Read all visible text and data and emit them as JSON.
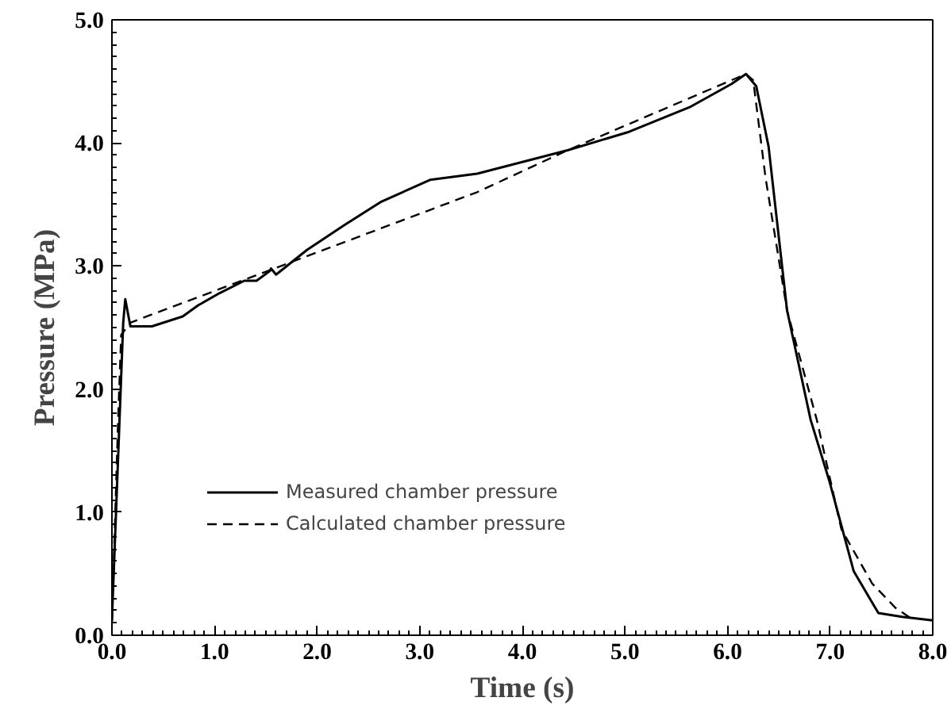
{
  "chart_data": {
    "type": "line",
    "xlabel": "Time (s)",
    "ylabel": "Pressure (MPa)",
    "xlim": [
      0,
      8
    ],
    "ylim": [
      0,
      5
    ],
    "xticks": [
      {
        "value": 0,
        "label": "0.0"
      },
      {
        "value": 1,
        "label": "1.0"
      },
      {
        "value": 2,
        "label": "2.0"
      },
      {
        "value": 3,
        "label": "3.0"
      },
      {
        "value": 4,
        "label": "4.0"
      },
      {
        "value": 5,
        "label": "5.0"
      },
      {
        "value": 6,
        "label": "6.0"
      },
      {
        "value": 7,
        "label": "7.0"
      },
      {
        "value": 8,
        "label": "8.0"
      }
    ],
    "yticks": [
      {
        "value": 0,
        "label": "0.0"
      },
      {
        "value": 1,
        "label": "1.0"
      },
      {
        "value": 2,
        "label": "2.0"
      },
      {
        "value": 3,
        "label": "3.0"
      },
      {
        "value": 4,
        "label": "4.0"
      },
      {
        "value": 5,
        "label": "5.0"
      }
    ],
    "grid": false,
    "legend": "bottom left",
    "series": [
      {
        "name": "Measured chamber pressure",
        "color": "#000000",
        "line_style": "solid",
        "x": [
          0,
          0.11,
          0.13,
          0.18,
          0.39,
          0.69,
          0.84,
          1.05,
          1.29,
          1.41,
          1.54,
          1.55,
          1.6,
          1.9,
          2.26,
          2.62,
          3.1,
          3.56,
          4.44,
          5.04,
          5.63,
          6.04,
          6.18,
          6.28,
          6.4,
          6.58,
          6.81,
          6.99,
          7.23,
          7.47,
          7.7,
          8.0
        ],
        "values": [
          0.12,
          2.54,
          2.73,
          2.51,
          2.51,
          2.59,
          2.68,
          2.78,
          2.88,
          2.88,
          2.96,
          2.98,
          2.93,
          3.13,
          3.33,
          3.52,
          3.7,
          3.75,
          3.94,
          4.09,
          4.29,
          4.48,
          4.56,
          4.46,
          3.97,
          2.64,
          1.75,
          1.26,
          0.52,
          0.18,
          0.15,
          0.12
        ]
      },
      {
        "name": "Calculated chamber pressure",
        "color": "#000000",
        "line_style": "dashed",
        "x": [
          0,
          0.06,
          0.09,
          0.18,
          3.56,
          4.44,
          6.18,
          6.25,
          6.37,
          6.58,
          6.87,
          7.11,
          7.41,
          7.64,
          7.82
        ],
        "values": [
          0.1,
          1.75,
          2.44,
          2.54,
          3.6,
          3.94,
          4.56,
          4.51,
          3.72,
          2.64,
          1.75,
          0.86,
          0.42,
          0.22,
          0.12
        ]
      }
    ]
  }
}
